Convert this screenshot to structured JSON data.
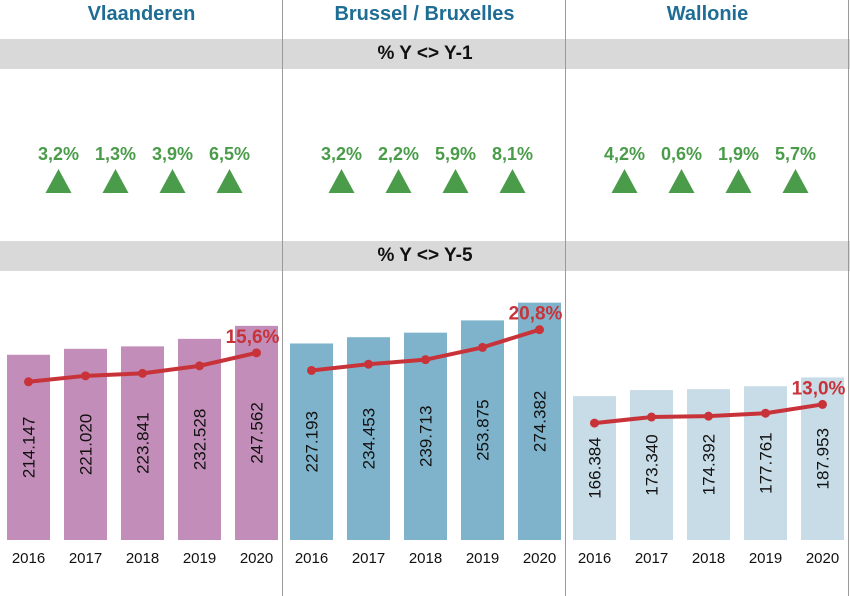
{
  "bands": {
    "yoy_label": "% Y <> Y-1",
    "y5_label": "% Y <> Y-5"
  },
  "colors": {
    "title": "#1f6d94",
    "band": "#d9d9d9",
    "growth": "#4a9c4a",
    "line": "#c8333a"
  },
  "chart_data": [
    {
      "type": "bar",
      "region": "Vlaanderen",
      "categories": [
        "2016",
        "2017",
        "2018",
        "2019",
        "2020"
      ],
      "values": [
        214147,
        221020,
        223841,
        232528,
        247562
      ],
      "value_labels": [
        "214.147",
        "221.020",
        "223.841",
        "232.528",
        "247.562"
      ],
      "bar_color": "#c28db8",
      "yoy_change": [
        "3,2%",
        "1,3%",
        "3,9%",
        "6,5%"
      ],
      "yoy_direction": [
        "up",
        "up",
        "up",
        "up"
      ],
      "change_5y": "15,6%"
    },
    {
      "type": "bar",
      "region": "Brussel / Bruxelles",
      "categories": [
        "2016",
        "2017",
        "2018",
        "2019",
        "2020"
      ],
      "values": [
        227193,
        234453,
        239713,
        253875,
        274382
      ],
      "value_labels": [
        "227.193",
        "234.453",
        "239.713",
        "253.875",
        "274.382"
      ],
      "bar_color": "#7fb3cb",
      "yoy_change": [
        "3,2%",
        "2,2%",
        "5,9%",
        "8,1%"
      ],
      "yoy_direction": [
        "up",
        "up",
        "up",
        "up"
      ],
      "change_5y": "20,8%"
    },
    {
      "type": "bar",
      "region": "Wallonie",
      "categories": [
        "2016",
        "2017",
        "2018",
        "2019",
        "2020"
      ],
      "values": [
        166384,
        173340,
        174392,
        177761,
        187953
      ],
      "value_labels": [
        "166.384",
        "173.340",
        "174.392",
        "177.761",
        "187.953"
      ],
      "bar_color": "#c8dce7",
      "yoy_change": [
        "4,2%",
        "0,6%",
        "1,9%",
        "5,7%"
      ],
      "yoy_direction": [
        "up",
        "up",
        "up",
        "up"
      ],
      "change_5y": "13,0%"
    }
  ]
}
